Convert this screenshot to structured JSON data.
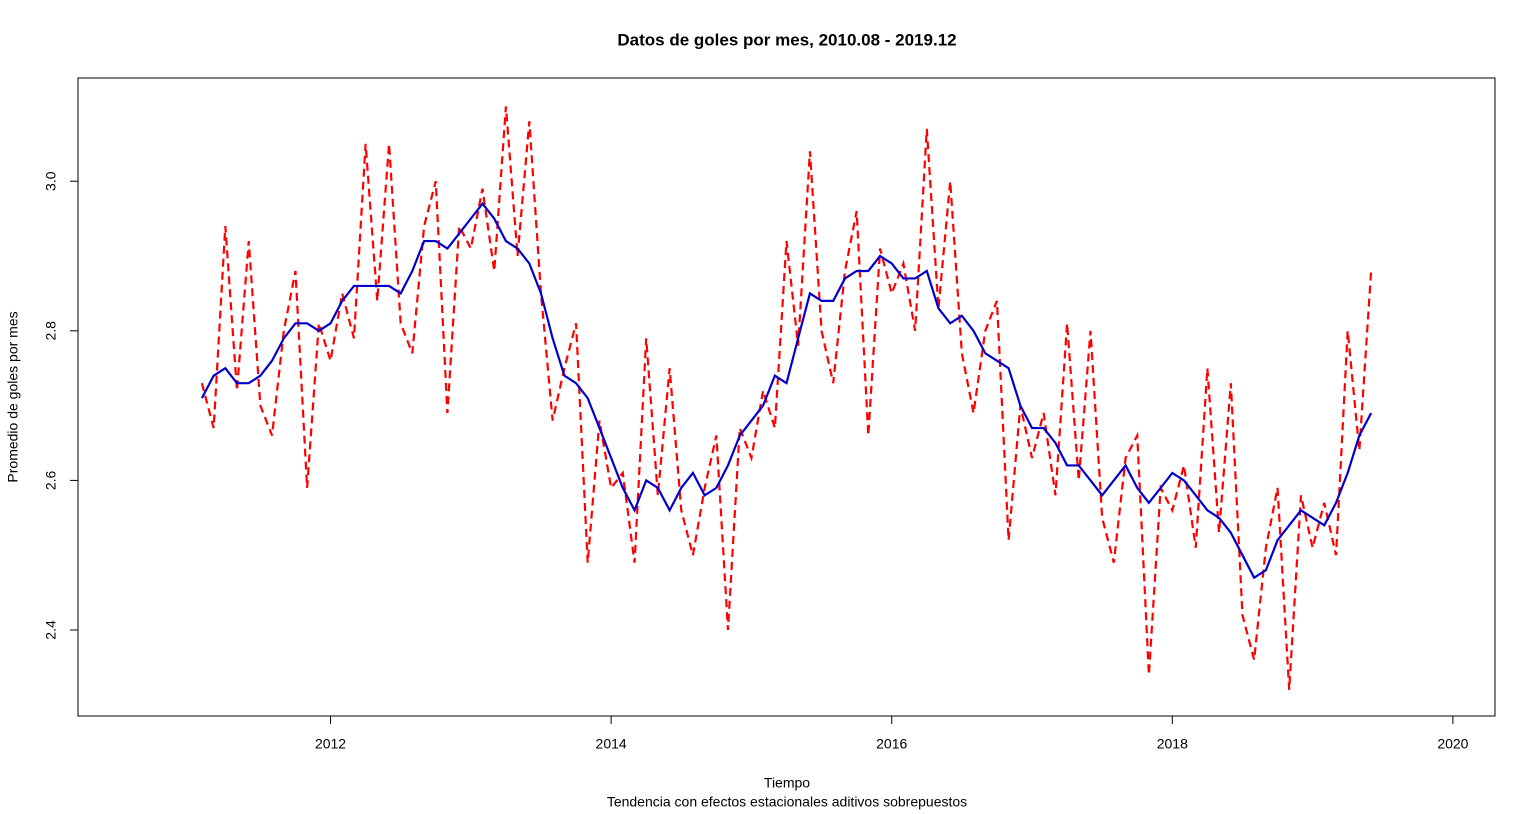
{
  "chart_data": {
    "type": "line",
    "title": "Datos de goles por mes, 2010.08 - 2019.12",
    "x_label": "Tiempo",
    "subtitle": "Tendencia con efectos estacionales aditivos sobrepuestos",
    "y_label": "Promedio de goles por mes",
    "x": [
      2011.083,
      2011.167,
      2011.25,
      2011.333,
      2011.417,
      2011.5,
      2011.583,
      2011.667,
      2011.75,
      2011.833,
      2011.917,
      2012.0,
      2012.083,
      2012.167,
      2012.25,
      2012.333,
      2012.417,
      2012.5,
      2012.583,
      2012.667,
      2012.75,
      2012.833,
      2012.917,
      2013.0,
      2013.083,
      2013.167,
      2013.25,
      2013.333,
      2013.417,
      2013.5,
      2013.583,
      2013.667,
      2013.75,
      2013.833,
      2013.917,
      2014.0,
      2014.083,
      2014.167,
      2014.25,
      2014.333,
      2014.417,
      2014.5,
      2014.583,
      2014.667,
      2014.75,
      2014.833,
      2014.917,
      2015.0,
      2015.083,
      2015.167,
      2015.25,
      2015.333,
      2015.417,
      2015.5,
      2015.583,
      2015.667,
      2015.75,
      2015.833,
      2015.917,
      2016.0,
      2016.083,
      2016.167,
      2016.25,
      2016.333,
      2016.417,
      2016.5,
      2016.583,
      2016.667,
      2016.75,
      2016.833,
      2016.917,
      2017.0,
      2017.083,
      2017.167,
      2017.25,
      2017.333,
      2017.417,
      2017.5,
      2017.583,
      2017.667,
      2017.75,
      2017.833,
      2017.917,
      2018.0,
      2018.083,
      2018.167,
      2018.25,
      2018.333,
      2018.417,
      2018.5,
      2018.583,
      2018.667,
      2018.75,
      2018.833,
      2018.917,
      2019.0,
      2019.083,
      2019.167,
      2019.25,
      2019.333,
      2019.417
    ],
    "series": [
      {
        "name": "Tendencia con efectos estacionales",
        "color": "#ff0000",
        "dash": true,
        "values": [
          2.73,
          2.67,
          2.94,
          2.72,
          2.92,
          2.7,
          2.66,
          2.8,
          2.88,
          2.59,
          2.81,
          2.76,
          2.85,
          2.79,
          3.05,
          2.84,
          3.05,
          2.81,
          2.77,
          2.94,
          3.0,
          2.69,
          2.94,
          2.91,
          2.99,
          2.88,
          3.1,
          2.9,
          3.08,
          2.85,
          2.68,
          2.75,
          2.81,
          2.49,
          2.68,
          2.59,
          2.61,
          2.49,
          2.79,
          2.58,
          2.75,
          2.56,
          2.5,
          2.59,
          2.66,
          2.4,
          2.67,
          2.63,
          2.72,
          2.67,
          2.92,
          2.78,
          3.04,
          2.8,
          2.73,
          2.88,
          2.96,
          2.66,
          2.91,
          2.85,
          2.89,
          2.8,
          3.07,
          2.83,
          3.0,
          2.77,
          2.69,
          2.8,
          2.84,
          2.52,
          2.7,
          2.63,
          2.69,
          2.58,
          2.81,
          2.6,
          2.8,
          2.55,
          2.49,
          2.63,
          2.66,
          2.34,
          2.59,
          2.56,
          2.62,
          2.51,
          2.75,
          2.53,
          2.73,
          2.42,
          2.36,
          2.51,
          2.59,
          2.32,
          2.58,
          2.51,
          2.57,
          2.5,
          2.8,
          2.64,
          2.88
        ]
      },
      {
        "name": "Tendencia",
        "color": "#0000cd",
        "dash": false,
        "values": [
          2.71,
          2.74,
          2.75,
          2.73,
          2.73,
          2.74,
          2.76,
          2.79,
          2.81,
          2.81,
          2.8,
          2.81,
          2.84,
          2.86,
          2.86,
          2.86,
          2.86,
          2.85,
          2.88,
          2.92,
          2.92,
          2.91,
          2.93,
          2.95,
          2.97,
          2.95,
          2.92,
          2.91,
          2.89,
          2.85,
          2.79,
          2.74,
          2.73,
          2.71,
          2.67,
          2.63,
          2.59,
          2.56,
          2.6,
          2.59,
          2.56,
          2.59,
          2.61,
          2.58,
          2.59,
          2.62,
          2.66,
          2.68,
          2.7,
          2.74,
          2.73,
          2.79,
          2.85,
          2.84,
          2.84,
          2.87,
          2.88,
          2.88,
          2.9,
          2.89,
          2.87,
          2.87,
          2.88,
          2.83,
          2.81,
          2.82,
          2.8,
          2.77,
          2.76,
          2.75,
          2.7,
          2.67,
          2.67,
          2.65,
          2.62,
          2.62,
          2.6,
          2.58,
          2.6,
          2.62,
          2.59,
          2.57,
          2.59,
          2.61,
          2.6,
          2.58,
          2.56,
          2.55,
          2.53,
          2.5,
          2.47,
          2.48,
          2.52,
          2.54,
          2.56,
          2.55,
          2.54,
          2.57,
          2.61,
          2.66,
          2.69
        ]
      }
    ],
    "xlim": [
      2010.2,
      2020.3
    ],
    "xticks": [
      2012,
      2014,
      2016,
      2018,
      2020
    ],
    "ylim": [
      2.285,
      3.138
    ],
    "yticks": [
      2.4,
      2.6,
      2.8,
      {
        "value": 3,
        "label": "3.0"
      }
    ]
  }
}
